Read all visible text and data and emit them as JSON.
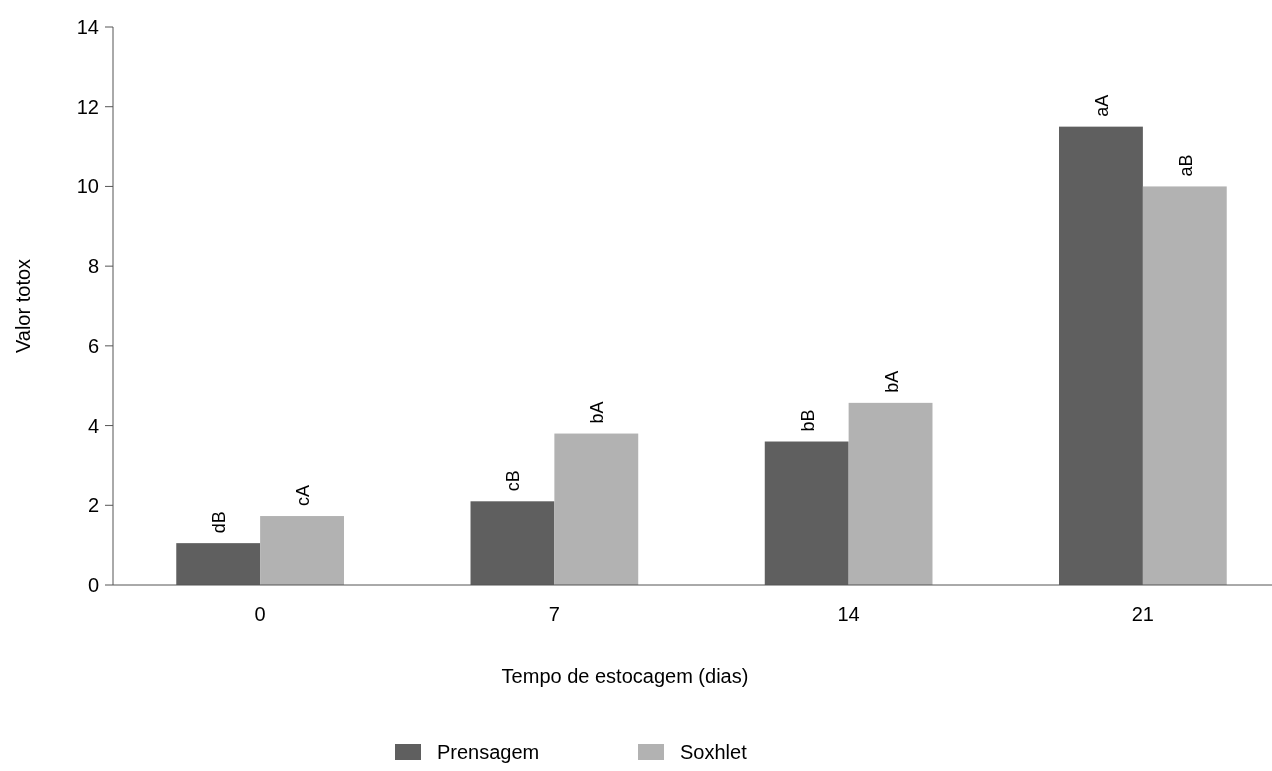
{
  "chart_data": {
    "type": "bar",
    "xlabel": "Tempo de estocagem (dias)",
    "ylabel": "Valor totox",
    "categories": [
      "0",
      "7",
      "14",
      "21"
    ],
    "series": [
      {
        "name": "Prensagem",
        "color": "#5f5f5f",
        "values": [
          1.05,
          2.1,
          3.6,
          11.5
        ],
        "value_labels": [
          "dB",
          "cB",
          "bB",
          "aA"
        ]
      },
      {
        "name": "Soxhlet",
        "color": "#b2b2b2",
        "values": [
          1.73,
          3.8,
          4.57,
          10.0
        ],
        "value_labels": [
          "cA",
          "bA",
          "bA",
          "aB"
        ]
      }
    ],
    "ylim": [
      0,
      14
    ],
    "yticks": [
      0,
      2,
      4,
      6,
      8,
      10,
      12,
      14
    ],
    "grid": false,
    "legend": "bottom"
  }
}
